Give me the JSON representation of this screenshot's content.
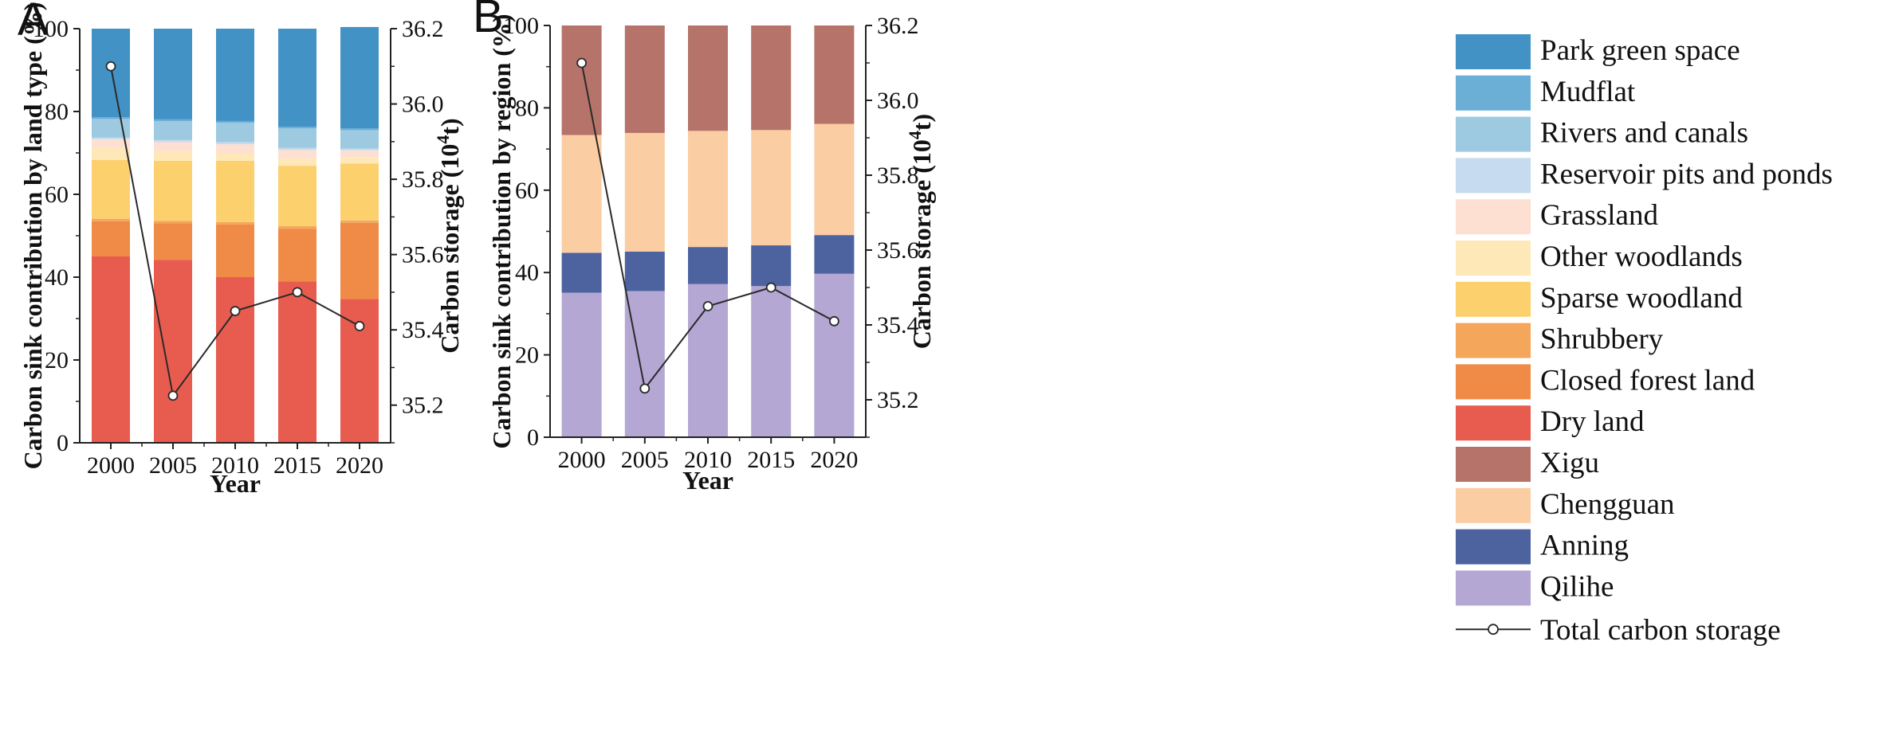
{
  "figure": {
    "legend": {
      "land_types": [
        {
          "name": "Park green space",
          "color": "#4292c6"
        },
        {
          "name": "Mudflat",
          "color": "#6baed6"
        },
        {
          "name": "Rivers and canals",
          "color": "#9ecae1"
        },
        {
          "name": "Reservoir pits and ponds",
          "color": "#c6dbef"
        },
        {
          "name": "Grassland",
          "color": "#fde0d2"
        },
        {
          "name": "Other woodlands",
          "color": "#fee8b8"
        },
        {
          "name": "Sparse woodland",
          "color": "#fdd06e"
        },
        {
          "name": "Shrubbery",
          "color": "#f4a65a"
        },
        {
          "name": "Closed forest land",
          "color": "#ef8a47"
        },
        {
          "name": "Dry land",
          "color": "#e85c50"
        }
      ],
      "regions": [
        {
          "name": "Xigu",
          "color": "#b5736a"
        },
        {
          "name": "Chengguan",
          "color": "#fbcda3"
        },
        {
          "name": "Anning",
          "color": "#4c63a0"
        },
        {
          "name": "Qilihe",
          "color": "#b4a7d3"
        }
      ],
      "line_label": "Total carbon storage"
    }
  },
  "chart_data": [
    {
      "panel": "A",
      "type": "bar",
      "stacked": true,
      "categories": [
        "2000",
        "2005",
        "2010",
        "2015",
        "2020"
      ],
      "xlabel": "Year",
      "ylabel": "Carbon sink contribution by land type (%)",
      "ylim": [
        0,
        100
      ],
      "yticks": [
        "0",
        "20",
        "40",
        "60",
        "80",
        "100"
      ],
      "series": [
        {
          "name": "Dry land",
          "color": "#e85c50",
          "values": [
            45.0,
            44.2,
            40.0,
            39.0,
            34.7
          ]
        },
        {
          "name": "Closed forest land",
          "color": "#ef8a47",
          "values": [
            8.5,
            8.8,
            12.7,
            12.7,
            18.4
          ]
        },
        {
          "name": "Shrubbery",
          "color": "#f4a65a",
          "values": [
            0.6,
            0.6,
            0.6,
            0.6,
            0.6
          ]
        },
        {
          "name": "Sparse woodland",
          "color": "#fdd06e",
          "values": [
            14.2,
            14.5,
            14.8,
            14.6,
            13.7
          ]
        },
        {
          "name": "Other woodlands",
          "color": "#fee8b8",
          "values": [
            3.0,
            2.3,
            1.8,
            1.8,
            1.6
          ]
        },
        {
          "name": "Grassland",
          "color": "#fde0d2",
          "values": [
            2.0,
            2.2,
            2.2,
            2.0,
            1.6
          ]
        },
        {
          "name": "Reservoir pits and ponds",
          "color": "#c6dbef",
          "values": [
            0.4,
            0.5,
            0.5,
            0.5,
            0.4
          ]
        },
        {
          "name": "Rivers and canals",
          "color": "#9ecae1",
          "values": [
            4.5,
            4.6,
            4.7,
            4.7,
            4.5
          ]
        },
        {
          "name": "Mudflat",
          "color": "#6baed6",
          "values": [
            0.4,
            0.4,
            0.4,
            0.4,
            0.4
          ]
        },
        {
          "name": "Park green space",
          "color": "#4292c6",
          "values": [
            21.4,
            21.9,
            22.3,
            23.7,
            24.5
          ]
        }
      ],
      "line": {
        "name": "Total carbon storage",
        "axis": "right",
        "y2label": "Carbon storage (10",
        "y2label_sup": "4",
        "y2label_end": "t)",
        "y2lim": [
          35.1,
          36.2
        ],
        "y2ticks": [
          "35.2",
          "35.4",
          "35.6",
          "35.8",
          "36.0",
          "36.2"
        ],
        "values": [
          36.1,
          35.225,
          35.45,
          35.5,
          35.41
        ]
      }
    },
    {
      "panel": "B",
      "type": "bar",
      "stacked": true,
      "categories": [
        "2000",
        "2005",
        "2010",
        "2015",
        "2020"
      ],
      "xlabel": "Year",
      "ylabel": "Carbon sink contribution by region (%)",
      "ylim": [
        0,
        100
      ],
      "yticks": [
        "0",
        "20",
        "40",
        "60",
        "80",
        "100"
      ],
      "series": [
        {
          "name": "Qilihe",
          "color": "#b4a7d3",
          "values": [
            35.1,
            35.5,
            37.2,
            36.7,
            39.7
          ]
        },
        {
          "name": "Anning",
          "color": "#4c63a0",
          "values": [
            9.7,
            9.6,
            9.0,
            9.9,
            9.4
          ]
        },
        {
          "name": "Chengguan",
          "color": "#fbcda3",
          "values": [
            28.6,
            28.8,
            28.2,
            28.0,
            27.0
          ]
        },
        {
          "name": "Xigu",
          "color": "#b5736a",
          "values": [
            26.6,
            26.1,
            25.6,
            25.4,
            23.9
          ]
        }
      ],
      "line": {
        "name": "Total carbon storage",
        "axis": "right",
        "y2label": "Carbon storage (10",
        "y2label_sup": "4",
        "y2label_end": "t)",
        "y2lim": [
          35.1,
          36.2
        ],
        "y2ticks": [
          "35.2",
          "35.4",
          "35.6",
          "35.8",
          "36.0",
          "36.2"
        ],
        "values": [
          36.1,
          35.23,
          35.45,
          35.5,
          35.41
        ]
      }
    }
  ]
}
